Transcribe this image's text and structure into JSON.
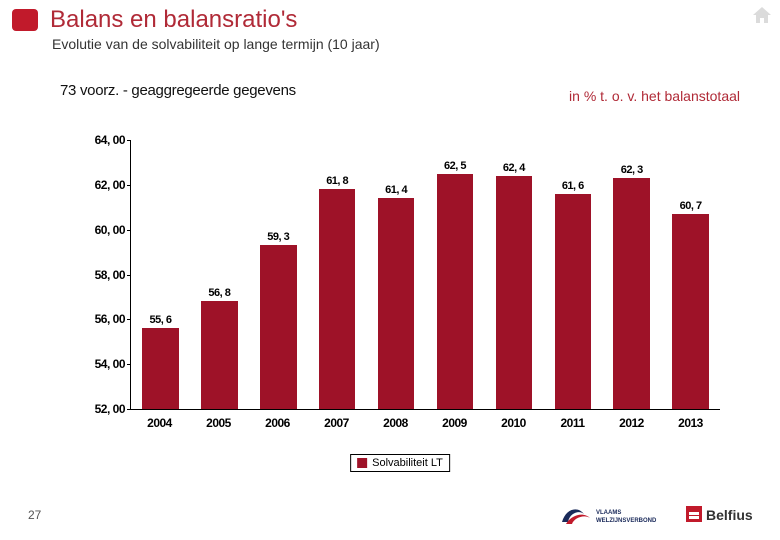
{
  "header": {
    "title": "Balans en balansratio's",
    "subtitle": "Evolutie van de solvabiliteit  op lange termijn (10 jaar)"
  },
  "notes": {
    "left": "73 voorz. - geaggregeerde gegevens",
    "right": "in % t. o. v. het balanstotaal"
  },
  "chart": {
    "type": "bar",
    "categories": [
      "2004",
      "2005",
      "2006",
      "2007",
      "2008",
      "2009",
      "2010",
      "2011",
      "2012",
      "2013"
    ],
    "values": [
      55.6,
      56.8,
      59.3,
      61.8,
      61.4,
      62.5,
      62.4,
      61.6,
      62.3,
      60.7
    ],
    "value_labels": [
      "55, 6",
      "56, 8",
      "59, 3",
      "61, 8",
      "61, 4",
      "62, 5",
      "62, 4",
      "61, 6",
      "62, 3",
      "60, 7"
    ],
    "bar_color": "#9e1228",
    "ylim": [
      52.0,
      64.0
    ],
    "yticks": [
      52.0,
      54.0,
      56.0,
      58.0,
      60.0,
      62.0,
      64.0
    ],
    "ytick_labels": [
      "52, 00",
      "54, 00",
      "56, 00",
      "58, 00",
      "60, 00",
      "62, 00",
      "64, 00"
    ],
    "tick_fontsize": 12,
    "label_fontsize": 11,
    "background_color": "#ffffff",
    "legend_label": "Solvabiliteit LT"
  },
  "footer": {
    "page_number": "27",
    "logo_text_1": "VLAAMS WELZIJNSVERBOND",
    "logo_text_2": "Belfius"
  }
}
